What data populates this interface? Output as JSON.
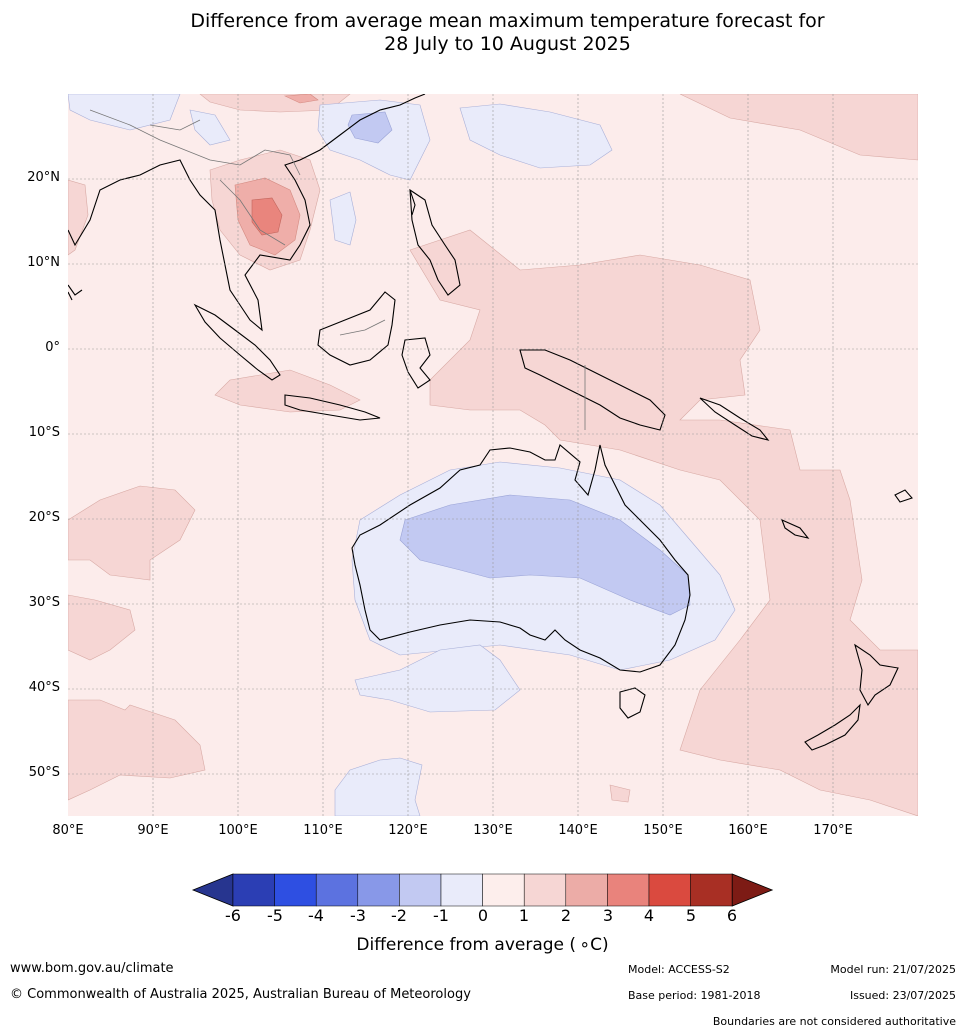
{
  "title": {
    "line1": "Difference from average mean maximum temperature forecast for",
    "line2": "28 July to 10 August 2025"
  },
  "map": {
    "lat_labels": [
      "20°N",
      "10°N",
      "0°",
      "10°S",
      "20°S",
      "30°S",
      "40°S",
      "50°S"
    ],
    "lon_labels": [
      "80°E",
      "90°E",
      "100°E",
      "110°E",
      "120°E",
      "130°E",
      "140°E",
      "150°E",
      "160°E",
      "170°E"
    ],
    "colors": {
      "ocean_base": "#fceceb",
      "pos1": "#f6d6d4",
      "pos2": "#efaea9",
      "pos3": "#e9857d",
      "neg1": "#e9ebfa",
      "neg2": "#c2c9f2",
      "coast": "#000000",
      "grid": "#999999"
    }
  },
  "colorbar": {
    "ticks": [
      "-6",
      "-5",
      "-4",
      "-3",
      "-2",
      "-1",
      "0",
      "1",
      "2",
      "3",
      "4",
      "5",
      "6"
    ],
    "colors": [
      "#27358f",
      "#2b3eb4",
      "#2e4fe2",
      "#5c72e0",
      "#8898e8",
      "#c2c9f2",
      "#e9ebfa",
      "#fdeeec",
      "#f6d6d4",
      "#ecaca7",
      "#e9837c",
      "#da4a3f",
      "#a82f24",
      "#7d1b15"
    ],
    "label": "Difference from average ( ∘C)"
  },
  "footer": {
    "website": "www.bom.gov.au/climate",
    "copyright": "© Commonwealth of Australia 2025, Australian Bureau of Meteorology",
    "model": "Model: ACCESS-S2",
    "base_period": "Base period: 1981-2018",
    "model_run": "Model run: 21/07/2025",
    "issued": "Issued: 23/07/2025",
    "disclaimer": "Boundaries are not considered authoritative"
  }
}
